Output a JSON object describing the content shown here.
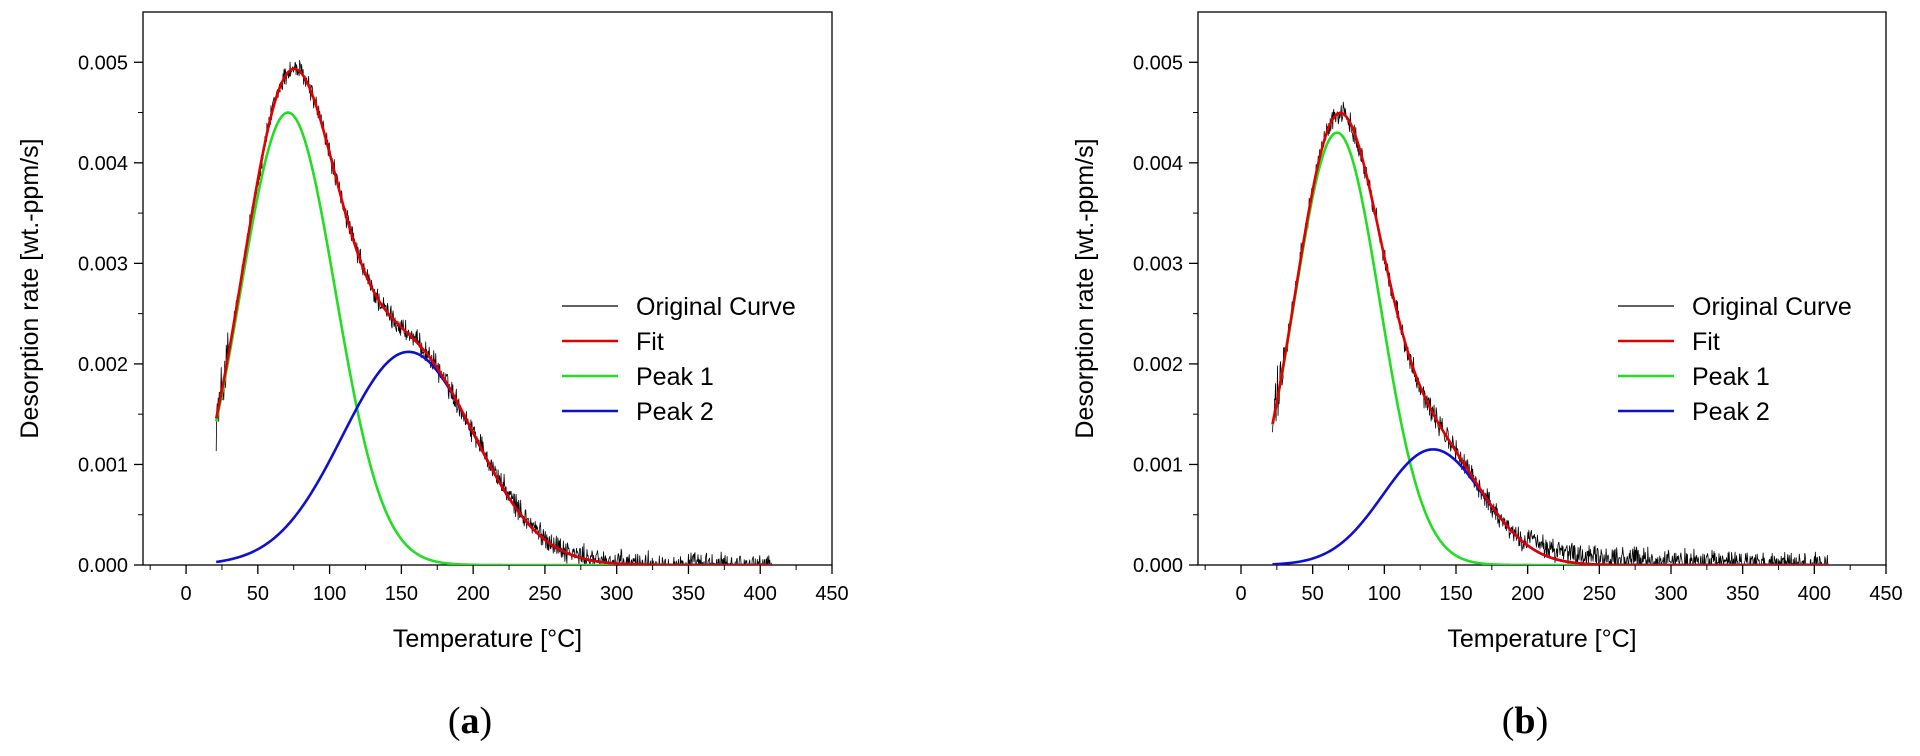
{
  "chart_data": [
    {
      "type": "line",
      "panel_label": "a",
      "title": "",
      "xlabel": "Temperature [°C]",
      "ylabel": "Desorption rate [wt.-ppm/s]",
      "xlim": [
        -30,
        450
      ],
      "ylim": [
        0,
        0.0055
      ],
      "xticks": [
        0,
        50,
        100,
        150,
        200,
        250,
        300,
        350,
        400,
        450
      ],
      "xtick_labels": [
        "0",
        "50",
        "100",
        "150",
        "200",
        "250",
        "300",
        "350",
        "400",
        "450"
      ],
      "yticks": [
        0,
        0.001,
        0.002,
        0.003,
        0.004,
        0.005
      ],
      "ytick_labels": [
        "0.000",
        "0.001",
        "0.002",
        "0.003",
        "0.004",
        "0.005"
      ],
      "legend_position": "right",
      "x_range": [
        21,
        408
      ],
      "series": [
        {
          "name": "Original Curve",
          "color": "#000000",
          "kind": "noisy",
          "noise_amplitude": 9e-05
        },
        {
          "name": "Fit",
          "color": "#e00000",
          "kind": "sum"
        },
        {
          "name": "Peak 1",
          "color": "#22dd22",
          "kind": "gaussian",
          "amplitude": 0.0045,
          "center": 71,
          "sigma": 33
        },
        {
          "name": "Peak 2",
          "color": "#1010cc",
          "kind": "gaussian",
          "amplitude": 0.00212,
          "center": 155,
          "sigma": 46
        }
      ]
    },
    {
      "type": "line",
      "panel_label": "b",
      "title": "",
      "xlabel": "Temperature [°C]",
      "ylabel": "Desorption rate [wt.-ppm/s]",
      "xlim": [
        -30,
        450
      ],
      "ylim": [
        0,
        0.0055
      ],
      "xticks": [
        0,
        50,
        100,
        150,
        200,
        250,
        300,
        350,
        400,
        450
      ],
      "xtick_labels": [
        "0",
        "50",
        "100",
        "150",
        "200",
        "250",
        "300",
        "350",
        "400",
        "450"
      ],
      "yticks": [
        0,
        0.001,
        0.002,
        0.003,
        0.004,
        0.005
      ],
      "ytick_labels": [
        "0.000",
        "0.001",
        "0.002",
        "0.003",
        "0.004",
        "0.005"
      ],
      "legend_position": "right",
      "x_range": [
        22,
        410
      ],
      "series": [
        {
          "name": "Original Curve",
          "color": "#000000",
          "kind": "noisy",
          "noise_amplitude": 9e-05
        },
        {
          "name": "Fit",
          "color": "#e00000",
          "kind": "sum"
        },
        {
          "name": "Peak 1",
          "color": "#22dd22",
          "kind": "gaussian",
          "amplitude": 0.0043,
          "center": 67,
          "sigma": 30
        },
        {
          "name": "Peak 2",
          "color": "#1010cc",
          "kind": "gaussian",
          "amplitude": 0.00115,
          "center": 134,
          "sigma": 35
        }
      ]
    }
  ]
}
